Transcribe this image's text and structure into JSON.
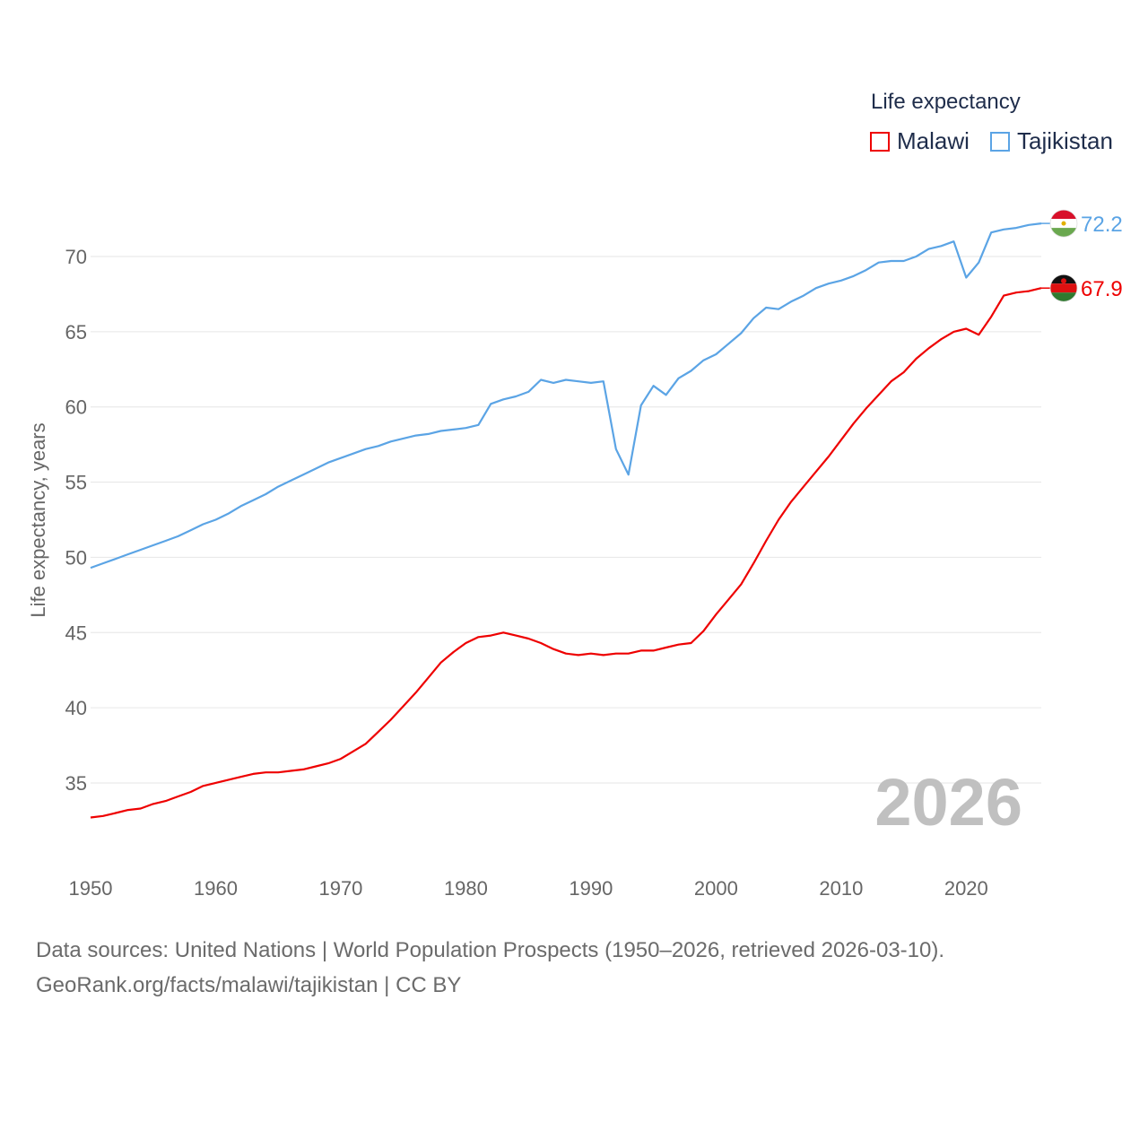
{
  "legend": {
    "title": "Life expectancy",
    "items": [
      {
        "label": "Malawi",
        "color": "#ee0000"
      },
      {
        "label": "Tajikistan",
        "color": "#5ba4e5"
      }
    ]
  },
  "source": {
    "line1": "Data sources: United Nations | World Population Prospects (1950–2026, retrieved 2026-03-10).",
    "line2": "GeoRank.org/facts/malawi/tajikistan | CC BY"
  },
  "chart_data": {
    "type": "line",
    "title": "Life expectancy",
    "ylabel": "Life expectancy, years",
    "xlabel": "",
    "year_label": "2026",
    "xlim": [
      1950,
      2026
    ],
    "ylim": [
      31.5,
      73.5
    ],
    "x_ticks": [
      1950,
      1960,
      1970,
      1980,
      1990,
      2000,
      2010,
      2020
    ],
    "y_ticks": [
      35,
      40,
      45,
      50,
      55,
      60,
      65,
      70
    ],
    "grid": true,
    "legend_position": "top-right",
    "x": [
      1950,
      1951,
      1952,
      1953,
      1954,
      1955,
      1956,
      1957,
      1958,
      1959,
      1960,
      1961,
      1962,
      1963,
      1964,
      1965,
      1966,
      1967,
      1968,
      1969,
      1970,
      1971,
      1972,
      1973,
      1974,
      1975,
      1976,
      1977,
      1978,
      1979,
      1980,
      1981,
      1982,
      1983,
      1984,
      1985,
      1986,
      1987,
      1988,
      1989,
      1990,
      1991,
      1992,
      1993,
      1994,
      1995,
      1996,
      1997,
      1998,
      1999,
      2000,
      2001,
      2002,
      2003,
      2004,
      2005,
      2006,
      2007,
      2008,
      2009,
      2010,
      2011,
      2012,
      2013,
      2014,
      2015,
      2016,
      2017,
      2018,
      2019,
      2020,
      2021,
      2022,
      2023,
      2024,
      2025,
      2026
    ],
    "series": [
      {
        "name": "Malawi",
        "color": "#ee0000",
        "end_label": "67.9",
        "values": [
          32.7,
          32.8,
          33.0,
          33.2,
          33.3,
          33.6,
          33.8,
          34.1,
          34.4,
          34.8,
          35.0,
          35.2,
          35.4,
          35.6,
          35.7,
          35.7,
          35.8,
          35.9,
          36.1,
          36.3,
          36.6,
          37.1,
          37.6,
          38.4,
          39.2,
          40.1,
          41.0,
          42.0,
          43.0,
          43.7,
          44.3,
          44.7,
          44.8,
          45.0,
          44.8,
          44.6,
          44.3,
          43.9,
          43.6,
          43.5,
          43.6,
          43.5,
          43.6,
          43.6,
          43.8,
          43.8,
          44.0,
          44.2,
          44.3,
          45.1,
          46.2,
          47.2,
          48.2,
          49.6,
          51.1,
          52.5,
          53.7,
          54.7,
          55.7,
          56.7,
          57.8,
          58.9,
          59.9,
          60.8,
          61.7,
          62.3,
          63.2,
          63.9,
          64.5,
          65.0,
          65.2,
          64.8,
          66.0,
          67.4,
          67.6,
          67.7,
          67.9
        ]
      },
      {
        "name": "Tajikistan",
        "color": "#5ba4e5",
        "end_label": "72.2",
        "values": [
          49.3,
          49.6,
          49.9,
          50.2,
          50.5,
          50.8,
          51.1,
          51.4,
          51.8,
          52.2,
          52.5,
          52.9,
          53.4,
          53.8,
          54.2,
          54.7,
          55.1,
          55.5,
          55.9,
          56.3,
          56.6,
          56.9,
          57.2,
          57.4,
          57.7,
          57.9,
          58.1,
          58.2,
          58.4,
          58.5,
          58.6,
          58.8,
          60.2,
          60.5,
          60.7,
          61.0,
          61.8,
          61.6,
          61.8,
          61.7,
          61.6,
          61.7,
          57.2,
          55.5,
          60.1,
          61.4,
          60.8,
          61.9,
          62.4,
          63.1,
          63.5,
          64.2,
          64.9,
          65.9,
          66.6,
          66.5,
          67.0,
          67.4,
          67.9,
          68.2,
          68.4,
          68.7,
          69.1,
          69.6,
          69.7,
          69.7,
          70.0,
          70.5,
          70.7,
          71.0,
          68.6,
          69.6,
          71.6,
          71.8,
          71.9,
          72.1,
          72.2
        ]
      }
    ]
  }
}
